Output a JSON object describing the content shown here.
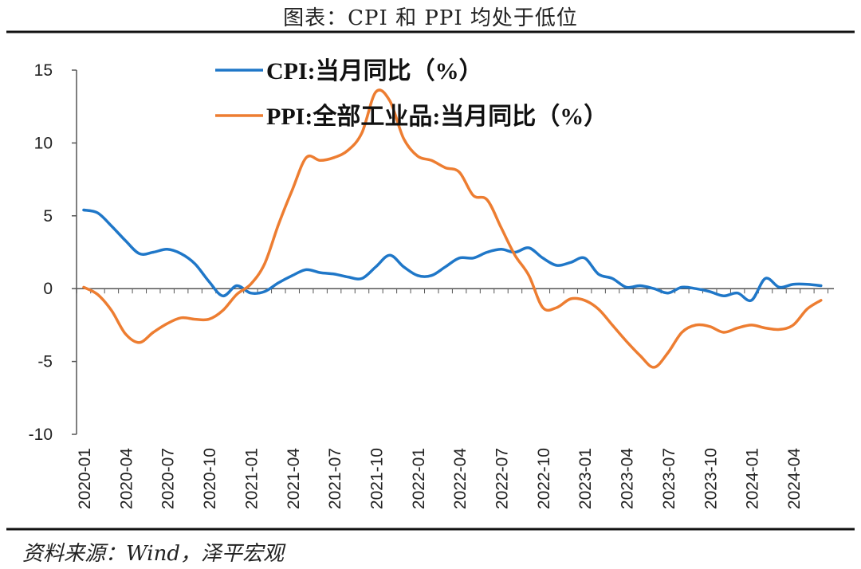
{
  "title": "图表：CPI 和 PPI 均处于低位",
  "source": "资料来源：Wind，泽平宏观",
  "chart_data": {
    "type": "line",
    "ylim": [
      -10,
      15
    ],
    "yticks": [
      15,
      10,
      5,
      0,
      -5,
      -10
    ],
    "xtick_labels": [
      "2020-01",
      "2020-04",
      "2020-07",
      "2020-10",
      "2021-01",
      "2021-04",
      "2021-07",
      "2021-10",
      "2022-01",
      "2022-04",
      "2022-07",
      "2022-10",
      "2023-01",
      "2023-04",
      "2023-07",
      "2023-10",
      "2024-01",
      "2024-04"
    ],
    "x": [
      "2020-01",
      "2020-02",
      "2020-03",
      "2020-04",
      "2020-05",
      "2020-06",
      "2020-07",
      "2020-08",
      "2020-09",
      "2020-10",
      "2020-11",
      "2020-12",
      "2021-01",
      "2021-02",
      "2021-03",
      "2021-04",
      "2021-05",
      "2021-06",
      "2021-07",
      "2021-08",
      "2021-09",
      "2021-10",
      "2021-11",
      "2021-12",
      "2022-01",
      "2022-02",
      "2022-03",
      "2022-04",
      "2022-05",
      "2022-06",
      "2022-07",
      "2022-08",
      "2022-09",
      "2022-10",
      "2022-11",
      "2022-12",
      "2023-01",
      "2023-02",
      "2023-03",
      "2023-04",
      "2023-05",
      "2023-06",
      "2023-07",
      "2023-08",
      "2023-09",
      "2023-10",
      "2023-11",
      "2023-12",
      "2024-01",
      "2024-02",
      "2024-03",
      "2024-04",
      "2024-05",
      "2024-06"
    ],
    "series": [
      {
        "name": "CPI:当月同比（%）",
        "color": "#1f77c8",
        "values": [
          5.4,
          5.2,
          4.3,
          3.3,
          2.4,
          2.5,
          2.7,
          2.4,
          1.7,
          0.5,
          -0.5,
          0.2,
          -0.3,
          -0.2,
          0.4,
          0.9,
          1.3,
          1.1,
          1.0,
          0.8,
          0.7,
          1.5,
          2.3,
          1.5,
          0.9,
          0.9,
          1.5,
          2.1,
          2.1,
          2.5,
          2.7,
          2.5,
          2.8,
          2.1,
          1.6,
          1.8,
          2.1,
          1.0,
          0.7,
          0.1,
          0.2,
          0.0,
          -0.3,
          0.1,
          0.0,
          -0.2,
          -0.5,
          -0.3,
          -0.8,
          0.7,
          0.1,
          0.3,
          0.3,
          0.2
        ]
      },
      {
        "name": "PPI:全部工业品:当月同比（%）",
        "color": "#ed7d31",
        "values": [
          0.1,
          -0.4,
          -1.5,
          -3.1,
          -3.7,
          -3.0,
          -2.4,
          -2.0,
          -2.1,
          -2.1,
          -1.5,
          -0.4,
          0.3,
          1.7,
          4.4,
          6.8,
          9.0,
          8.8,
          9.0,
          9.5,
          10.7,
          13.5,
          12.9,
          10.3,
          9.1,
          8.8,
          8.3,
          8.0,
          6.4,
          6.1,
          4.2,
          2.3,
          0.9,
          -1.3,
          -1.3,
          -0.7,
          -0.8,
          -1.4,
          -2.5,
          -3.6,
          -4.6,
          -5.4,
          -4.4,
          -3.0,
          -2.5,
          -2.6,
          -3.0,
          -2.7,
          -2.5,
          -2.7,
          -2.8,
          -2.5,
          -1.4,
          -0.8
        ]
      }
    ]
  }
}
